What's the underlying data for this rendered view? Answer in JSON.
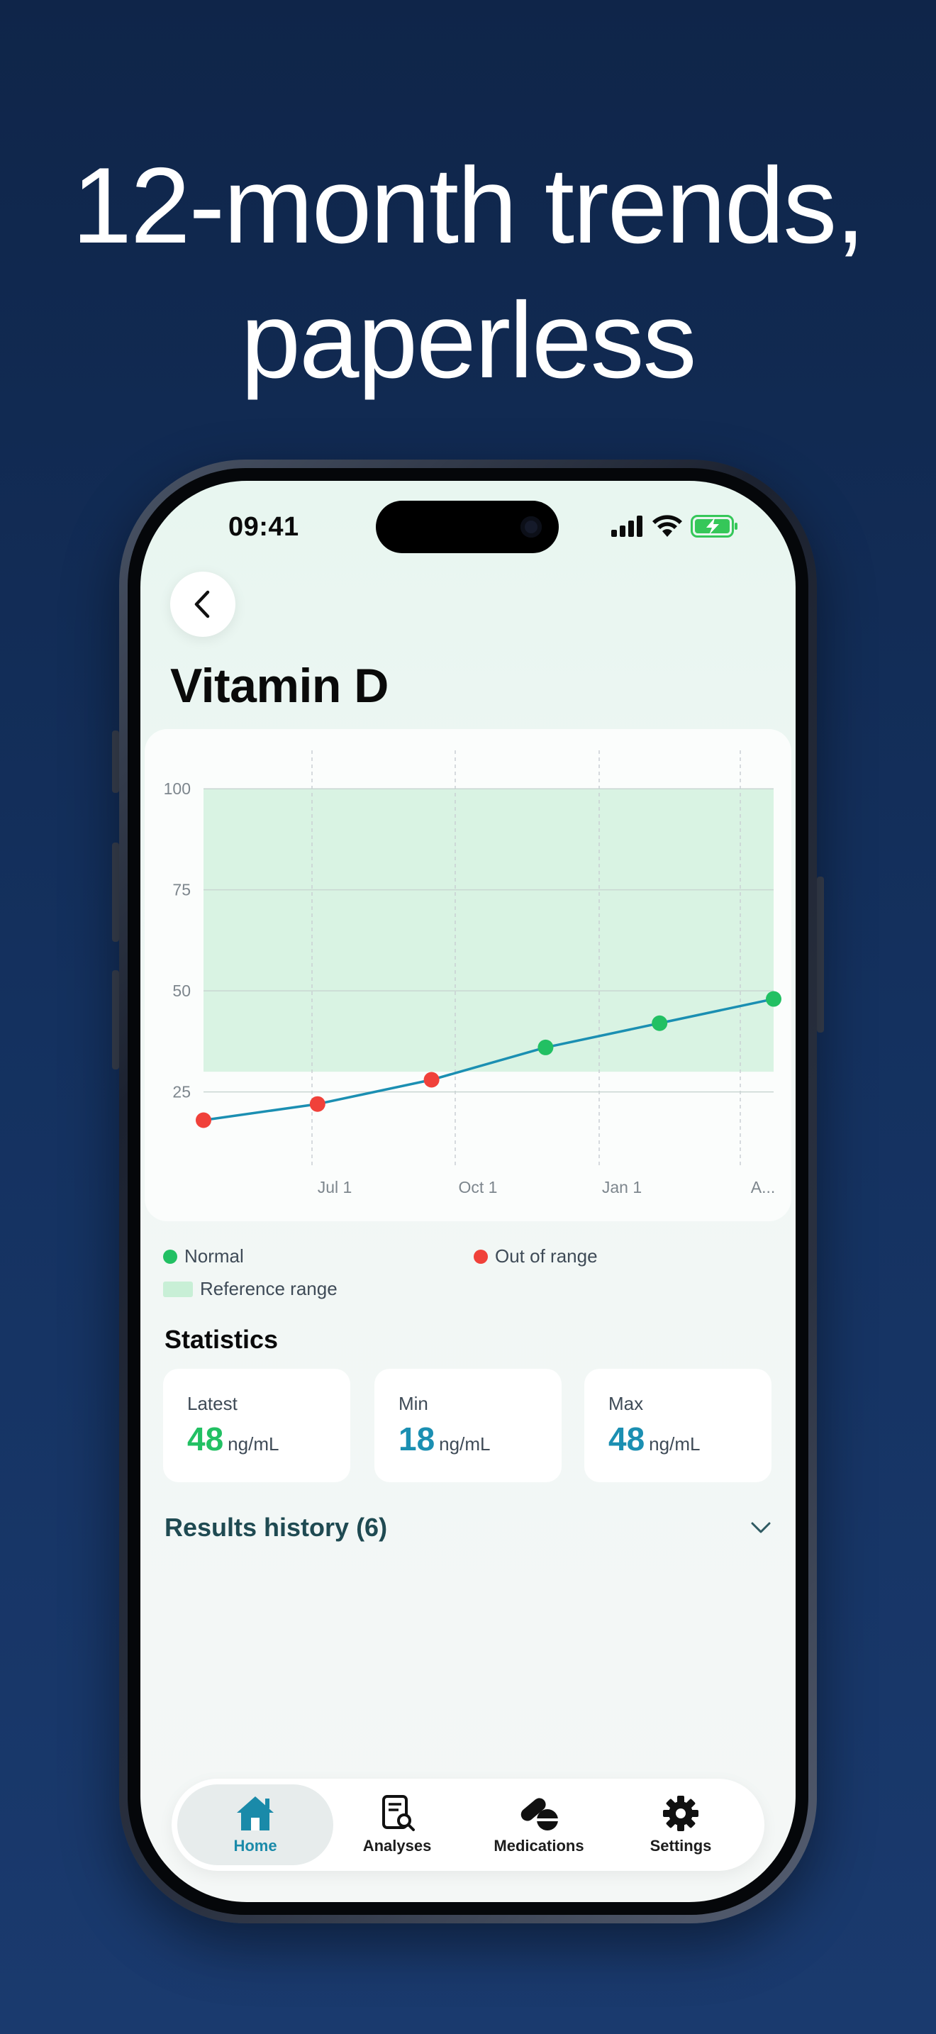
{
  "headline": {
    "line1": "12-month trends,",
    "line2": "paperless"
  },
  "status_bar": {
    "time": "09:41"
  },
  "page": {
    "title": "Vitamin D"
  },
  "chart_data": {
    "type": "line",
    "y_ticks": [
      "100",
      "75",
      "50",
      "25"
    ],
    "x_ticks": [
      "Jul 1",
      "Oct 1",
      "Jan 1",
      "A..."
    ],
    "ylim": [
      13,
      106
    ],
    "reference_range": [
      30,
      100
    ],
    "grid": true,
    "points": [
      {
        "value": 18,
        "status": "out"
      },
      {
        "value": 22,
        "status": "out"
      },
      {
        "value": 28,
        "status": "out"
      },
      {
        "value": 36,
        "status": "normal"
      },
      {
        "value": 42,
        "status": "normal"
      },
      {
        "value": 48,
        "status": "normal"
      }
    ],
    "colors": {
      "normal": "#22c063",
      "out": "#f0413a",
      "line": "#1b8fb2",
      "range": "#d9f3e3"
    }
  },
  "legend": {
    "normal": "Normal",
    "out_of_range": "Out of range",
    "reference_range": "Reference range"
  },
  "statistics": {
    "title": "Statistics",
    "latest": {
      "label": "Latest",
      "value": "48",
      "unit": "ng/mL",
      "color": "#22c063"
    },
    "min": {
      "label": "Min",
      "value": "18",
      "unit": "ng/mL",
      "color": "#1b8fb2"
    },
    "max": {
      "label": "Max",
      "value": "48",
      "unit": "ng/mL",
      "color": "#1b8fb2"
    }
  },
  "history": {
    "label": "Results history (6)"
  },
  "tabs": [
    {
      "label": "Home",
      "icon": "home-icon",
      "active": true
    },
    {
      "label": "Analyses",
      "icon": "analyses-icon",
      "active": false
    },
    {
      "label": "Medications",
      "icon": "pills-icon",
      "active": false
    },
    {
      "label": "Settings",
      "icon": "gear-icon",
      "active": false
    }
  ]
}
